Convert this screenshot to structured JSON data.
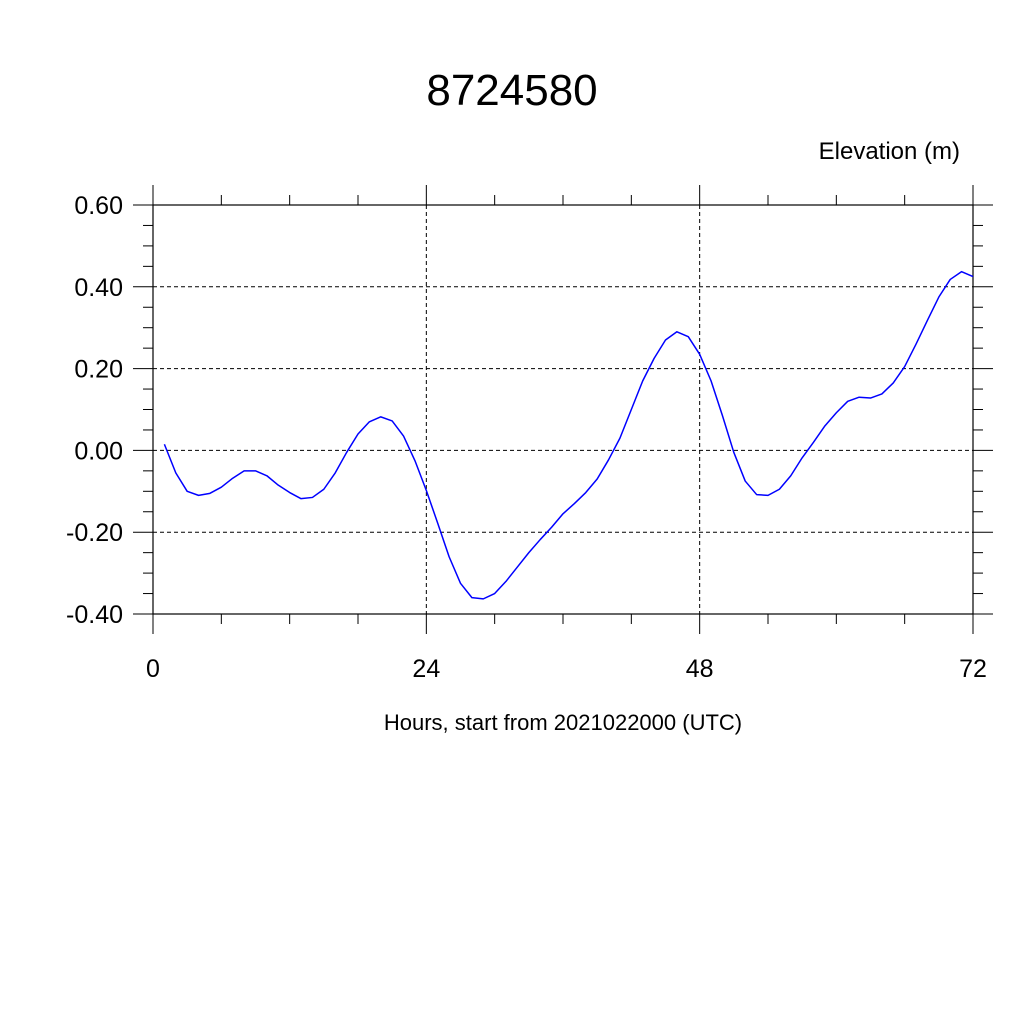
{
  "chart_data": {
    "type": "line",
    "title": "8724580",
    "ylabel": "Elevation (m)",
    "xlabel": "Hours, start from 2021022000 (UTC)",
    "xlim": [
      0,
      72
    ],
    "ylim": [
      -0.4,
      0.6
    ],
    "x_ticks": [
      0,
      24,
      48,
      72
    ],
    "x_tick_labels": [
      "0",
      "24",
      "48",
      "72"
    ],
    "y_ticks": [
      -0.4,
      -0.2,
      0.0,
      0.2,
      0.4,
      0.6
    ],
    "y_tick_labels": [
      "-0.40",
      "-0.20",
      "0.00",
      "0.20",
      "0.40",
      "0.60"
    ],
    "grid": true,
    "line_color": "#0000ff",
    "series": [
      {
        "x": [
          1,
          2,
          3,
          4,
          5,
          6,
          7,
          8,
          9,
          10,
          11,
          12,
          13,
          14,
          15,
          16,
          17,
          18,
          19,
          20,
          21,
          22,
          23,
          24,
          25,
          26,
          27,
          28,
          29,
          30,
          31,
          32,
          33,
          34,
          35,
          36,
          37,
          38,
          39,
          40,
          41,
          42,
          43,
          44,
          45,
          46,
          47,
          48,
          49,
          50,
          51,
          52,
          53,
          54,
          55,
          56,
          57,
          58,
          59,
          60,
          61,
          62,
          63,
          64,
          65,
          66,
          67,
          68,
          69,
          70,
          71,
          72
        ],
        "values": [
          0.015,
          -0.055,
          -0.1,
          -0.11,
          -0.105,
          -0.09,
          -0.068,
          -0.05,
          -0.05,
          -0.062,
          -0.085,
          -0.103,
          -0.118,
          -0.115,
          -0.095,
          -0.055,
          -0.005,
          0.04,
          0.07,
          0.082,
          0.072,
          0.035,
          -0.025,
          -0.098,
          -0.178,
          -0.26,
          -0.325,
          -0.36,
          -0.363,
          -0.35,
          -0.32,
          -0.285,
          -0.25,
          -0.218,
          -0.188,
          -0.155,
          -0.13,
          -0.103,
          -0.07,
          -0.023,
          0.03,
          0.1,
          0.17,
          0.225,
          0.27,
          0.29,
          0.278,
          0.235,
          0.17,
          0.085,
          -0.005,
          -0.075,
          -0.108,
          -0.11,
          -0.095,
          -0.062,
          -0.018,
          0.02,
          0.06,
          0.092,
          0.12,
          0.13,
          0.128,
          0.138,
          0.165,
          0.205,
          0.26,
          0.318,
          0.375,
          0.418,
          0.437,
          0.425
        ]
      }
    ]
  }
}
